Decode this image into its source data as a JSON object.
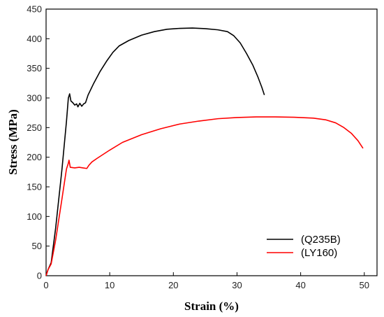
{
  "chart_data": {
    "type": "line",
    "title": "",
    "xlabel": "Strain (%)",
    "ylabel": "Stress (MPa)",
    "xlim": [
      0,
      52
    ],
    "ylim": [
      0,
      450
    ],
    "xticks": [
      0,
      10,
      20,
      30,
      40,
      50
    ],
    "yticks": [
      0,
      50,
      100,
      150,
      200,
      250,
      300,
      350,
      400,
      450
    ],
    "grid": false,
    "legend_position": "bottom-right",
    "series": [
      {
        "name": "(Q235B)",
        "color": "#000000",
        "points": [
          [
            0,
            0
          ],
          [
            0.3,
            10
          ],
          [
            0.8,
            22
          ],
          [
            1.5,
            80
          ],
          [
            2.5,
            180
          ],
          [
            3.2,
            260
          ],
          [
            3.5,
            300
          ],
          [
            3.7,
            307
          ],
          [
            3.9,
            295
          ],
          [
            4.2,
            292
          ],
          [
            4.5,
            288
          ],
          [
            4.8,
            290
          ],
          [
            5.0,
            285
          ],
          [
            5.3,
            291
          ],
          [
            5.6,
            286
          ],
          [
            5.9,
            290
          ],
          [
            6.2,
            292
          ],
          [
            6.6,
            305
          ],
          [
            7.5,
            325
          ],
          [
            8.5,
            345
          ],
          [
            9.5,
            362
          ],
          [
            10.5,
            377
          ],
          [
            11.5,
            388
          ],
          [
            13,
            397
          ],
          [
            15,
            406
          ],
          [
            17,
            412
          ],
          [
            19,
            416
          ],
          [
            21,
            417.5
          ],
          [
            23,
            418
          ],
          [
            25,
            417
          ],
          [
            27,
            415
          ],
          [
            28.5,
            412
          ],
          [
            29.5,
            405
          ],
          [
            30.5,
            393
          ],
          [
            31.5,
            375
          ],
          [
            32.5,
            355
          ],
          [
            33.3,
            335
          ],
          [
            33.9,
            318
          ],
          [
            34.3,
            305
          ]
        ]
      },
      {
        "name": "(LY160)",
        "color": "#ff0000",
        "points": [
          [
            0,
            0
          ],
          [
            0.3,
            10
          ],
          [
            0.8,
            20
          ],
          [
            1.5,
            60
          ],
          [
            2.5,
            130
          ],
          [
            3.2,
            180
          ],
          [
            3.5,
            190
          ],
          [
            3.6,
            195
          ],
          [
            3.8,
            183
          ],
          [
            4.5,
            182
          ],
          [
            5.2,
            183
          ],
          [
            5.8,
            182
          ],
          [
            6.4,
            181
          ],
          [
            6.7,
            186
          ],
          [
            7.2,
            192
          ],
          [
            8,
            198
          ],
          [
            10,
            212
          ],
          [
            12,
            225
          ],
          [
            15,
            238
          ],
          [
            18,
            248
          ],
          [
            21,
            256
          ],
          [
            24,
            261
          ],
          [
            27,
            265
          ],
          [
            30,
            267
          ],
          [
            33,
            268
          ],
          [
            36,
            268
          ],
          [
            39,
            267.5
          ],
          [
            42,
            266
          ],
          [
            44,
            263
          ],
          [
            45.5,
            258
          ],
          [
            46.8,
            250
          ],
          [
            48,
            240
          ],
          [
            49,
            228
          ],
          [
            49.8,
            215
          ]
        ]
      }
    ]
  }
}
